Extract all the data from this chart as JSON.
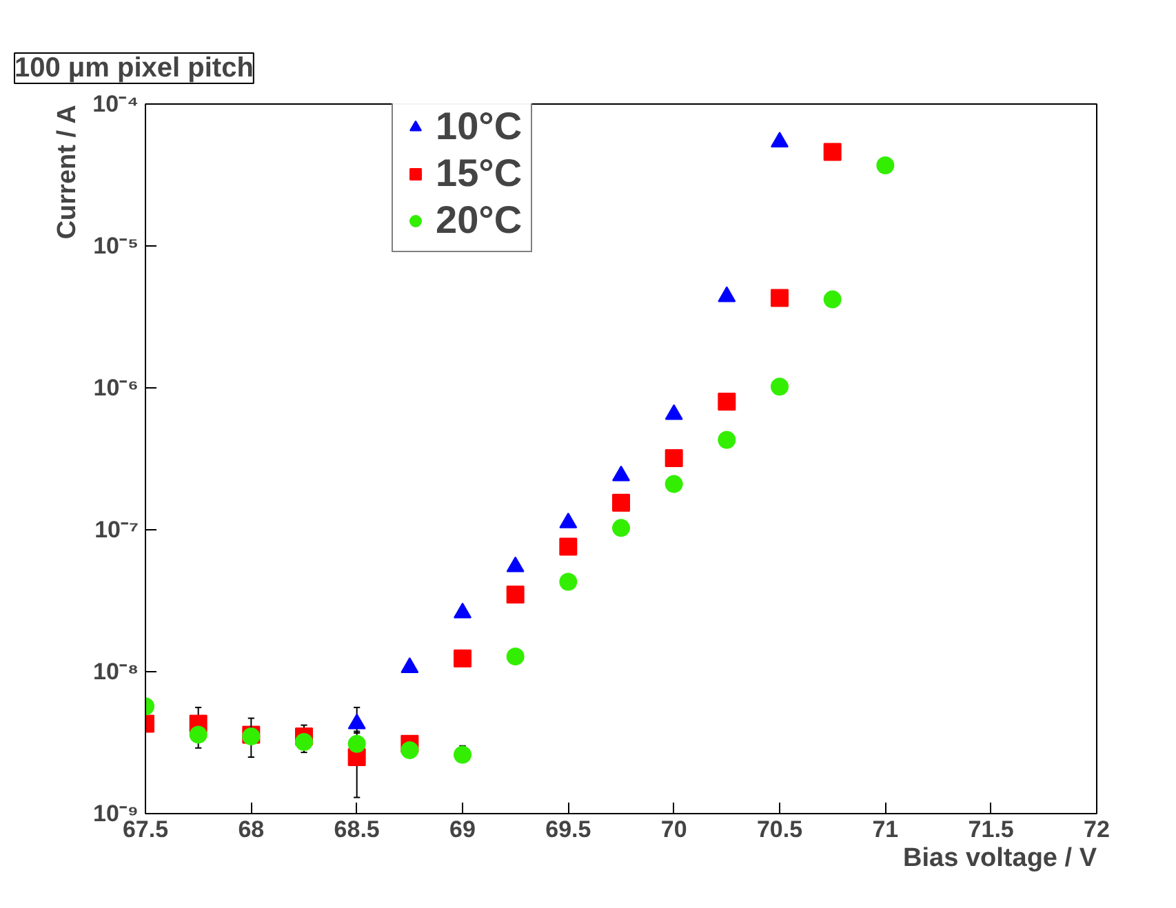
{
  "chart_data": {
    "type": "scatter",
    "title": "100 μm pixel pitch",
    "xlabel": "Bias voltage / V",
    "ylabel": "Current / A",
    "log": "y",
    "grid": false,
    "legend": "top",
    "xlim": [
      67.5,
      72
    ],
    "xticks": [
      67.5,
      68,
      68.5,
      69,
      69.5,
      70,
      70.5,
      71,
      71.5,
      72
    ],
    "ylim": [
      1e-09,
      0.0001
    ],
    "yticks": [
      {
        "value": 1e-09,
        "label": "10⁻⁹"
      },
      {
        "value": 1e-08,
        "label": "10⁻⁸"
      },
      {
        "value": 1e-07,
        "label": "10⁻⁷"
      },
      {
        "value": 1e-06,
        "label": "10⁻⁶"
      },
      {
        "value": 1e-05,
        "label": "10⁻⁵"
      },
      {
        "value": 0.0001,
        "label": "10⁻⁴"
      }
    ],
    "series": [
      {
        "name": "10°C",
        "color": "#0000ff",
        "marker": "triangle",
        "x": [
          68.5,
          68.75,
          69,
          69.25,
          69.5,
          69.75,
          70,
          70.25,
          70.5
        ],
        "values": [
          4.3e-09,
          1.07e-08,
          2.6e-08,
          5.5e-08,
          1.12e-07,
          2.4e-07,
          6.5e-07,
          4.4e-06,
          5.4e-05
        ],
        "errors": [
          [
            3.7e-09,
            5.6e-09
          ],
          null,
          null,
          null,
          null,
          null,
          null,
          null,
          null
        ]
      },
      {
        "name": "15°C",
        "color": "#ff0000",
        "marker": "square",
        "x": [
          67.5,
          67.75,
          68,
          68.25,
          68.5,
          68.75,
          69,
          69.25,
          69.5,
          69.75,
          70,
          70.25,
          70.5,
          70.75
        ],
        "values": [
          4.3e-09,
          4.3e-09,
          3.6e-09,
          3.5e-09,
          2.5e-09,
          3.1e-09,
          1.24e-08,
          3.5e-08,
          7.6e-08,
          1.55e-07,
          3.2e-07,
          8e-07,
          4.3e-06,
          4.6e-05
        ],
        "errors": [
          null,
          [
            2.9e-09,
            5.6e-09
          ],
          null,
          [
            2.7e-09,
            4.2e-09
          ],
          [
            1.3e-09,
            3.8e-09
          ],
          null,
          null,
          null,
          null,
          null,
          null,
          null,
          null,
          null
        ]
      },
      {
        "name": "20°C",
        "color": "#33ee00",
        "marker": "circle",
        "x": [
          67.5,
          67.75,
          68,
          68.25,
          68.5,
          68.75,
          69,
          69.25,
          69.5,
          69.75,
          70,
          70.25,
          70.5,
          70.75,
          71
        ],
        "values": [
          5.7e-09,
          3.6e-09,
          3.5e-09,
          3.2e-09,
          3.1e-09,
          2.8e-09,
          2.6e-09,
          1.28e-08,
          4.3e-08,
          1.03e-07,
          2.1e-07,
          4.3e-07,
          1.02e-06,
          4.2e-06,
          3.7e-05
        ],
        "errors": [
          null,
          null,
          [
            2.5e-09,
            4.7e-09
          ],
          null,
          null,
          null,
          [
            2.4e-09,
            3e-09
          ],
          null,
          null,
          null,
          null,
          null,
          null,
          null,
          null
        ]
      }
    ]
  }
}
